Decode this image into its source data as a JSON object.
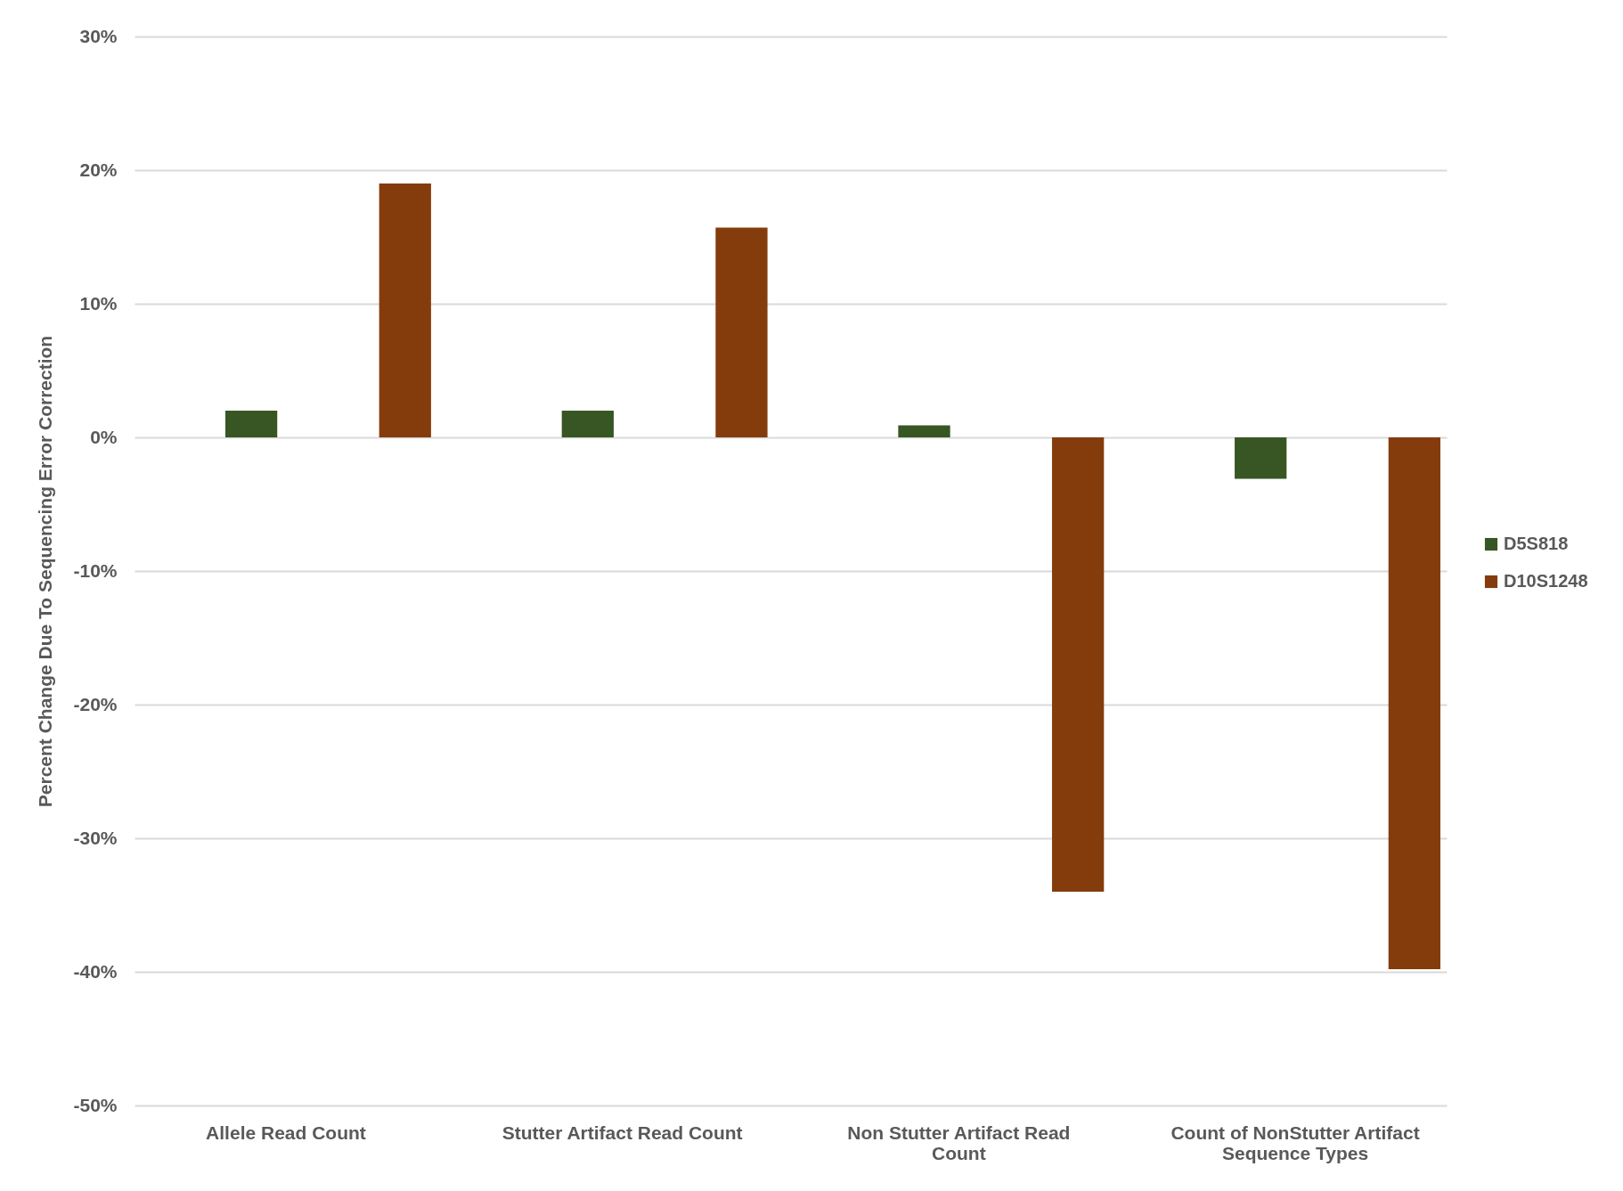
{
  "chart_data": {
    "type": "bar",
    "ylabel": "Percent Change Due To Sequencing Error Correction",
    "categories": [
      "Allele Read Count",
      "Stutter Artifact Read Count",
      "Non Stutter Artifact Read Count",
      "Count of NonStutter Artifact Sequence Types"
    ],
    "series": [
      {
        "name": "D5S818",
        "color": "#375623",
        "values": [
          2.0,
          2.0,
          0.9,
          -3.1
        ]
      },
      {
        "name": "D10S1248",
        "color": "#843c0c",
        "values": [
          19.0,
          15.7,
          -34.0,
          -39.8
        ]
      }
    ],
    "ylim": [
      -50,
      30
    ],
    "yticks": [
      {
        "value": -50,
        "label": "-50%"
      },
      {
        "value": -40,
        "label": "-40%"
      },
      {
        "value": -30,
        "label": "-30%"
      },
      {
        "value": -20,
        "label": "-20%"
      },
      {
        "value": -10,
        "label": "-10%"
      },
      {
        "value": 0,
        "label": "0%"
      },
      {
        "value": 10,
        "label": "10%"
      },
      {
        "value": 20,
        "label": "20%"
      },
      {
        "value": 30,
        "label": "30%"
      }
    ],
    "grid": "y",
    "legend": "right"
  }
}
